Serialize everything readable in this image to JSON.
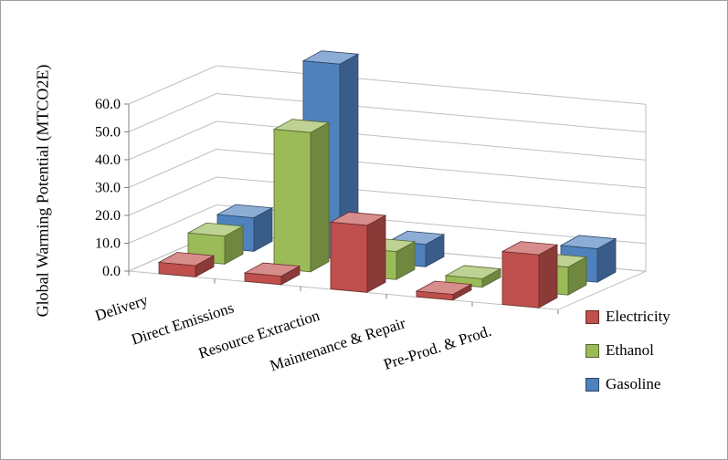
{
  "chart_data": {
    "type": "bar",
    "projection": "3d",
    "ylabel": "Global Warming Potential (MTCO2E)",
    "categories": [
      "Delivery",
      "Direct Emissions",
      "Resource Extraction",
      "Maintenance & Repair",
      "Pre-Prod. & Prod."
    ],
    "series": [
      {
        "name": "Electricity",
        "color": "#C0504D",
        "values": [
          4,
          3,
          24,
          2,
          19
        ]
      },
      {
        "name": "Ethanol",
        "color": "#9BBB59",
        "values": [
          10,
          50,
          10,
          3,
          10
        ]
      },
      {
        "name": "Gasoline",
        "color": "#4F81BD",
        "values": [
          12,
          70,
          8,
          0,
          12
        ]
      }
    ],
    "yticks": [
      0,
      10,
      20,
      30,
      40,
      50,
      60
    ],
    "ytick_labels": [
      "0.0",
      "10.0",
      "20.0",
      "30.0",
      "40.0",
      "50.0",
      "60.0"
    ],
    "ylim": [
      0,
      70
    ],
    "grid": true,
    "legend_position": "right",
    "colors": {
      "gridline": "#BFBFBF",
      "axis": "#808080",
      "text": "#000000",
      "background": "#FFFFFF"
    }
  }
}
